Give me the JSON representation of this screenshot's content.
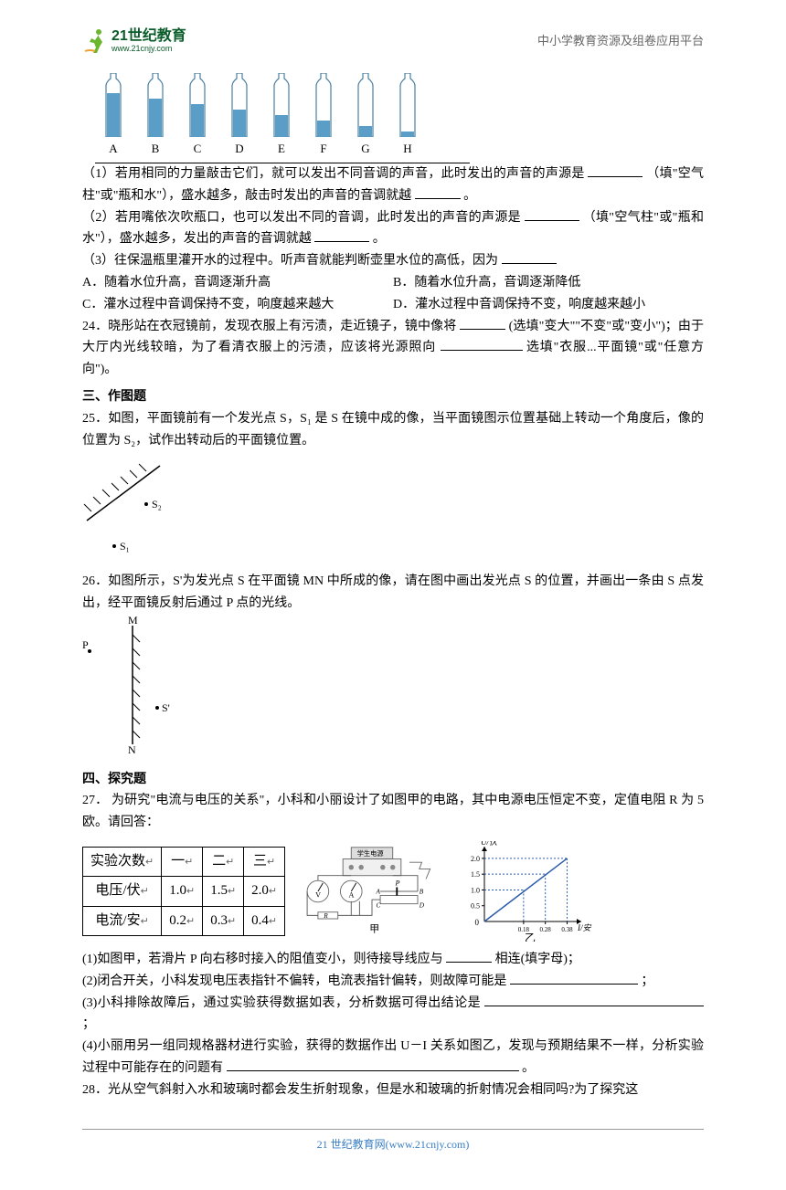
{
  "header": {
    "logo_cn": "21世纪教育",
    "logo_url": "www.21cnjy.com",
    "right_text": "中小学教育资源及组卷应用平台"
  },
  "bottles": {
    "labels": [
      "A",
      "B",
      "C",
      "D",
      "E",
      "F",
      "G",
      "H"
    ],
    "water_heights": [
      48,
      42,
      36,
      30,
      24,
      18,
      12,
      6
    ],
    "body_height": 56,
    "water_color": "#5a9ec7",
    "glass_stroke": "#4a7fa0"
  },
  "q1": {
    "text_a": "（1）若用相同的力量敲击它们，就可以发出不同音调的声音，此时发出的声音的声源是",
    "text_b": "（填\"空气柱\"或\"瓶和水\"），盛水越多，敲击时发出的声音的音调就越",
    "text_c": "。"
  },
  "q2": {
    "text_a": "（2）若用嘴依次吹瓶口，也可以发出不同的音调，此时发出的声音的声源是",
    "text_b": "（填\"空气柱\"或\"瓶和水\"），盛水越多，发出的声音的音调就越",
    "text_c": "。"
  },
  "q3": {
    "text_a": "（3）往保温瓶里灌开水的过程中。听声音就能判断壶里水位的高低，因为",
    "opt_a": "A．随着水位升高，音调逐渐升高",
    "opt_b": "B．随着水位升高，音调逐渐降低",
    "opt_c": "C．灌水过程中音调保持不变，响度越来越大",
    "opt_d": "D．灌水过程中音调保持不变，响度越来越小"
  },
  "q24": {
    "text_a": "24．晓彤站在衣冠镜前，发现衣服上有污渍，走近镜子，镜中像将",
    "text_b": "(选填\"变大\"\"不变\"或\"变小\")；由于大厅内光线较暗，为了看清衣服上的污渍，应该将光源照向",
    "text_c": "选填\"衣服...平面镜\"或\"任意方向\")。"
  },
  "section3": "三、作图题",
  "q25": {
    "text": "25．如图，平面镜前有一个发光点 S，S₁ 是 S 在镜中成的像，当平面镜图示位置基础上转动一个角度后，像的位置为 S₂，试作出转动后的平面镜位置。",
    "S1_label": "S₁",
    "S2_label": "S₂"
  },
  "q26": {
    "text": "26．如图所示，S'为发光点 S 在平面镜 MN 中所成的像，请在图中画出发光点 S 的位置，并画出一条由 S 点发出，经平面镜反射后通过 P 点的光线。",
    "M": "M",
    "N": "N",
    "P": "P",
    "S_prime": "S'"
  },
  "section4": "四、探究题",
  "q27": {
    "intro": "27．  为研究\"电流与电压的关系\"，小科和小丽设计了如图甲的电路，其中电源电压恒定不变，定值电阻 R 为 5 欧。请回答：",
    "table": {
      "headers": [
        "实验次数",
        "一",
        "二",
        "三"
      ],
      "rows": [
        [
          "电压/伏",
          "1.0",
          "1.5",
          "2.0"
        ],
        [
          "电流/安",
          "0.2",
          "0.3",
          "0.4"
        ]
      ]
    },
    "graph": {
      "ylabel": "U/伏",
      "xlabel": "I/安",
      "ylim": [
        0,
        2.0
      ],
      "yticks": [
        "0.5",
        "1.0",
        "1.5",
        "2.0"
      ],
      "xticks": [
        "0",
        "0.18",
        "0.28",
        "0.38"
      ],
      "line_color": "#2a5ca8",
      "dash_color": "#2a5ca8",
      "axis_color": "#000",
      "points": [
        [
          0.18,
          1.0
        ],
        [
          0.28,
          1.5
        ],
        [
          0.38,
          2.0
        ]
      ]
    },
    "circuit_label": "甲",
    "graph_label": "乙",
    "circuit_top_label": "学生电源",
    "sub1_a": "(1)如图甲，若滑片 P 向右移时接入的阻值变小，则待接导线应与",
    "sub1_b": "相连(填字母)；",
    "sub2_a": "(2)闭合开关，小科发现电压表指针不偏转，电流表指针偏转，则故障可能是",
    "sub2_b": "；",
    "sub3_a": "(3)小科排除故障后，通过实验获得数据如表，分析数据可得出结论是",
    "sub3_b": "；",
    "sub4_a": "(4)小丽用另一组同规格器材进行实验，获得的数据作出 U－I 关系如图乙，发现与预期结果不一样，分析实验过程中可能存在的问题有",
    "sub4_b": "。"
  },
  "q28": {
    "text": "28．光从空气斜射入水和玻璃时都会发生折射现象，但是水和玻璃的折射情况会相同吗?为了探究这"
  },
  "footer": "21 世纪教育网(www.21cnjy.com)"
}
